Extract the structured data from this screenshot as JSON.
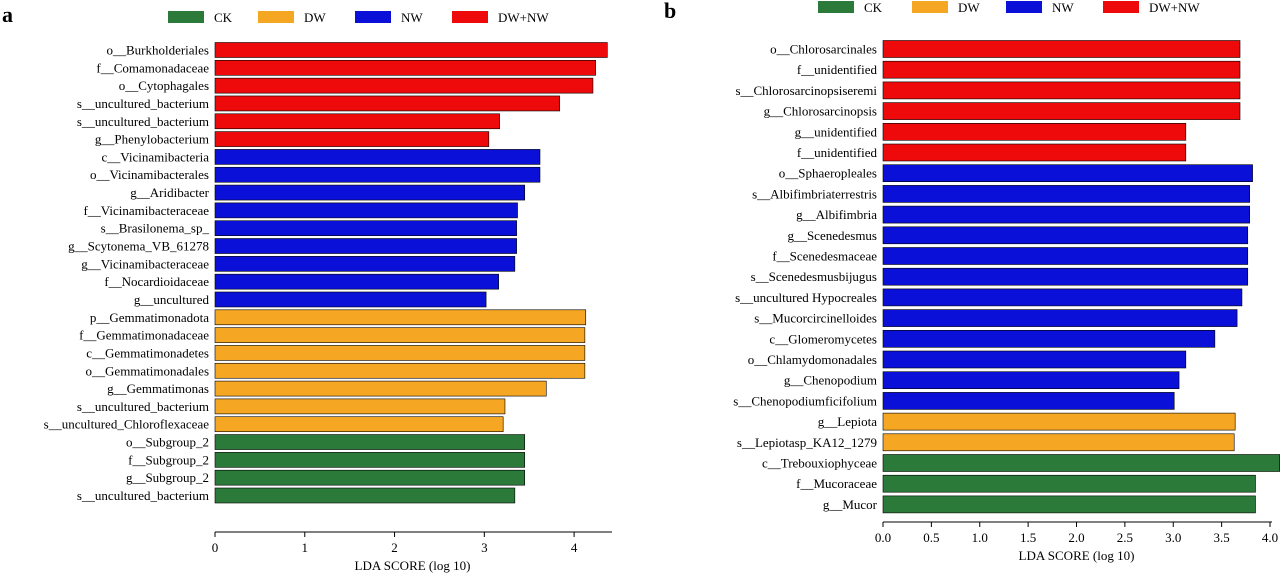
{
  "colors": {
    "CK": "#2b7a3a",
    "DW": "#f5a623",
    "NW": "#0a10d8",
    "DW+NW": "#ee0a0a"
  },
  "legend": [
    "CK",
    "DW",
    "NW",
    "DW+NW"
  ],
  "chart_data": [
    {
      "type": "bar",
      "orientation": "horizontal",
      "panel": "a",
      "xlabel": "LDA SCORE (log 10)",
      "xlim": [
        0,
        4.4
      ],
      "xticks": [
        "0",
        "1",
        "2",
        "3",
        "4"
      ],
      "legend_position": "top",
      "bars": [
        {
          "label": "o__Burkholderiales",
          "value": 4.37,
          "group": "DW+NW"
        },
        {
          "label": "f__Comamonadaceae",
          "value": 4.24,
          "group": "DW+NW"
        },
        {
          "label": "o__Cytophagales",
          "value": 4.21,
          "group": "DW+NW"
        },
        {
          "label": "s__uncultured_bacterium",
          "value": 3.84,
          "group": "DW+NW"
        },
        {
          "label": "s__uncultured_bacterium",
          "value": 3.17,
          "group": "DW+NW"
        },
        {
          "label": "g__Phenylobacterium",
          "value": 3.05,
          "group": "DW+NW"
        },
        {
          "label": "c__Vicinamibacteria",
          "value": 3.62,
          "group": "NW"
        },
        {
          "label": "o__Vicinamibacterales",
          "value": 3.62,
          "group": "NW"
        },
        {
          "label": "g__Aridibacter",
          "value": 3.45,
          "group": "NW"
        },
        {
          "label": "f__Vicinamibacteraceae",
          "value": 3.37,
          "group": "NW"
        },
        {
          "label": "s__Brasilonema_sp_",
          "value": 3.36,
          "group": "NW"
        },
        {
          "label": "g__Scytonema_VB_61278",
          "value": 3.36,
          "group": "NW"
        },
        {
          "label": "g__Vicinamibacteraceae",
          "value": 3.34,
          "group": "NW"
        },
        {
          "label": "f__Nocardioidaceae",
          "value": 3.16,
          "group": "NW"
        },
        {
          "label": "g__uncultured",
          "value": 3.02,
          "group": "NW"
        },
        {
          "label": "p__Gemmatimonadota",
          "value": 4.13,
          "group": "DW"
        },
        {
          "label": "f__Gemmatimonadaceae",
          "value": 4.12,
          "group": "DW"
        },
        {
          "label": "c__Gemmatimonadetes",
          "value": 4.12,
          "group": "DW"
        },
        {
          "label": "o__Gemmatimonadales",
          "value": 4.12,
          "group": "DW"
        },
        {
          "label": "g__Gemmatimonas",
          "value": 3.69,
          "group": "DW"
        },
        {
          "label": "s__uncultured_bacterium",
          "value": 3.23,
          "group": "DW"
        },
        {
          "label": "s__uncultured_Chloroflexaceae",
          "value": 3.21,
          "group": "DW"
        },
        {
          "label": "o__Subgroup_2",
          "value": 3.45,
          "group": "CK"
        },
        {
          "label": "f__Subgroup_2",
          "value": 3.45,
          "group": "CK"
        },
        {
          "label": "g__Subgroup_2",
          "value": 3.45,
          "group": "CK"
        },
        {
          "label": "s__uncultured_bacterium",
          "value": 3.34,
          "group": "CK"
        }
      ]
    },
    {
      "type": "bar",
      "orientation": "horizontal",
      "panel": "b",
      "xlabel": "LDA SCORE (log 10)",
      "xlim": [
        0,
        4.0
      ],
      "xticks": [
        "0.0",
        "0.5",
        "1.0",
        "1.5",
        "2.0",
        "2.5",
        "3.0",
        "3.5",
        "4.0"
      ],
      "legend_position": "top",
      "bars": [
        {
          "label": "o__Chlorosarcinales",
          "value": 3.69,
          "group": "DW+NW"
        },
        {
          "label": "f__unidentified",
          "value": 3.69,
          "group": "DW+NW"
        },
        {
          "label": "s__Chlorosarcinopsiseremi",
          "value": 3.69,
          "group": "DW+NW"
        },
        {
          "label": "g__Chlorosarcinopsis",
          "value": 3.69,
          "group": "DW+NW"
        },
        {
          "label": "g__unidentified",
          "value": 3.13,
          "group": "DW+NW"
        },
        {
          "label": "f__unidentified",
          "value": 3.13,
          "group": "DW+NW"
        },
        {
          "label": "o__Sphaeropleales",
          "value": 3.82,
          "group": "NW"
        },
        {
          "label": "s__Albifimbriaterrestris",
          "value": 3.79,
          "group": "NW"
        },
        {
          "label": "g__Albifimbria",
          "value": 3.79,
          "group": "NW"
        },
        {
          "label": "g__Scenedesmus",
          "value": 3.77,
          "group": "NW"
        },
        {
          "label": "f__Scenedesmaceae",
          "value": 3.77,
          "group": "NW"
        },
        {
          "label": "s__Scenedesmusbijugus",
          "value": 3.77,
          "group": "NW"
        },
        {
          "label": "s__uncultured Hypocreales",
          "value": 3.71,
          "group": "NW"
        },
        {
          "label": "s__Mucorcircinelloides",
          "value": 3.66,
          "group": "NW"
        },
        {
          "label": "c__Glomeromycetes",
          "value": 3.43,
          "group": "NW"
        },
        {
          "label": "o__Chlamydomonadales",
          "value": 3.13,
          "group": "NW"
        },
        {
          "label": "g__Chenopodium",
          "value": 3.06,
          "group": "NW"
        },
        {
          "label": "s__Chenopodiumficifolium",
          "value": 3.01,
          "group": "NW"
        },
        {
          "label": "g__Lepiota",
          "value": 3.64,
          "group": "DW"
        },
        {
          "label": "s__Lepiotasp_KA12_1279",
          "value": 3.63,
          "group": "DW"
        },
        {
          "label": "c__Trebouxiophyceae",
          "value": 4.1,
          "group": "CK"
        },
        {
          "label": "f__Mucoraceae",
          "value": 3.85,
          "group": "CK"
        },
        {
          "label": "g__Mucor",
          "value": 3.85,
          "group": "CK"
        }
      ]
    }
  ]
}
